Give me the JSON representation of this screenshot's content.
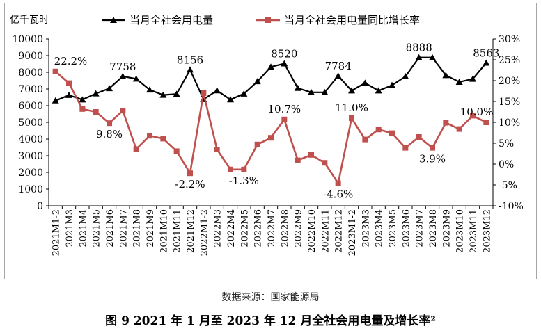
{
  "chart_data": {
    "type": "line",
    "y_left_unit": "亿千瓦时",
    "y_left_lim": [
      0,
      10000
    ],
    "y_left_ticks": [
      0,
      1000,
      2000,
      3000,
      4000,
      5000,
      6000,
      7000,
      8000,
      9000,
      10000
    ],
    "y_right_lim": [
      -10,
      30
    ],
    "y_right_ticks": [
      "-10%",
      "-5%",
      "0%",
      "5%",
      "10%",
      "15%",
      "20%",
      "25%",
      "30%"
    ],
    "legend_position": "top",
    "grid": false,
    "categories": [
      "2021M1-2",
      "2021M3",
      "2021M4",
      "2021M5",
      "2021M6",
      "2021M7",
      "2021M8",
      "2021M9",
      "2021M10",
      "2021M11",
      "2021M12",
      "2022M1-2",
      "2022M3",
      "2022M4",
      "2022M5",
      "2022M6",
      "2022M7",
      "2022M8",
      "2022M9",
      "2022M10",
      "2022M11",
      "2022M12",
      "2023M1-2",
      "2023M3",
      "2023M4",
      "2023M5",
      "2023M6",
      "2023M7",
      "2023M8",
      "2023M9",
      "2023M10",
      "2023M11",
      "2023M12"
    ],
    "series": [
      {
        "name": "当月全社会用电量",
        "axis": "left",
        "color": "#000000",
        "marker": "triangle",
        "values": [
          6300,
          6631,
          6361,
          6724,
          7037,
          7758,
          7607,
          6952,
          6640,
          6700,
          8156,
          6380,
          6907,
          6362,
          6716,
          7451,
          8324,
          8520,
          7050,
          6800,
          6800,
          7784,
          6900,
          7359,
          6900,
          7222,
          7751,
          8888,
          8888,
          7820,
          7419,
          7600,
          8563
        ]
      },
      {
        "name": "当月全社会用电量同比增长率",
        "axis": "right",
        "color": "#c0504d",
        "marker": "square",
        "values": [
          22.2,
          19.4,
          13.2,
          12.5,
          9.8,
          12.8,
          3.6,
          6.8,
          6.1,
          3.1,
          -2.2,
          17.0,
          3.5,
          -1.3,
          -1.3,
          4.7,
          6.3,
          10.7,
          0.9,
          2.2,
          0.3,
          -4.6,
          11.0,
          5.9,
          8.3,
          7.4,
          3.9,
          6.5,
          3.9,
          9.9,
          8.4,
          11.6,
          10.0
        ]
      }
    ],
    "annotations": {
      "left": [
        {
          "index": 5,
          "text": "7758"
        },
        {
          "index": 10,
          "text": "8156"
        },
        {
          "index": 17,
          "text": "8520"
        },
        {
          "index": 21,
          "text": "7784"
        },
        {
          "index": 27,
          "text": "8888"
        },
        {
          "index": 32,
          "text": "8563"
        }
      ],
      "right": [
        {
          "index": 0,
          "text": "22.2%"
        },
        {
          "index": 4,
          "text": "9.8%"
        },
        {
          "index": 10,
          "text": "-2.2%"
        },
        {
          "index": 14,
          "text": "-1.3%"
        },
        {
          "index": 17,
          "text": "10.7%"
        },
        {
          "index": 21,
          "text": "-4.6%"
        },
        {
          "index": 22,
          "text": "11.0%"
        },
        {
          "index": 28,
          "text": "3.9%"
        },
        {
          "index": 32,
          "text": "10.0%"
        }
      ]
    }
  },
  "source_note": "数据来源：国家能源局",
  "figure_caption": "图 9 2021 年 1 月至 2023 年 12 月全社会用电量及增长率²"
}
